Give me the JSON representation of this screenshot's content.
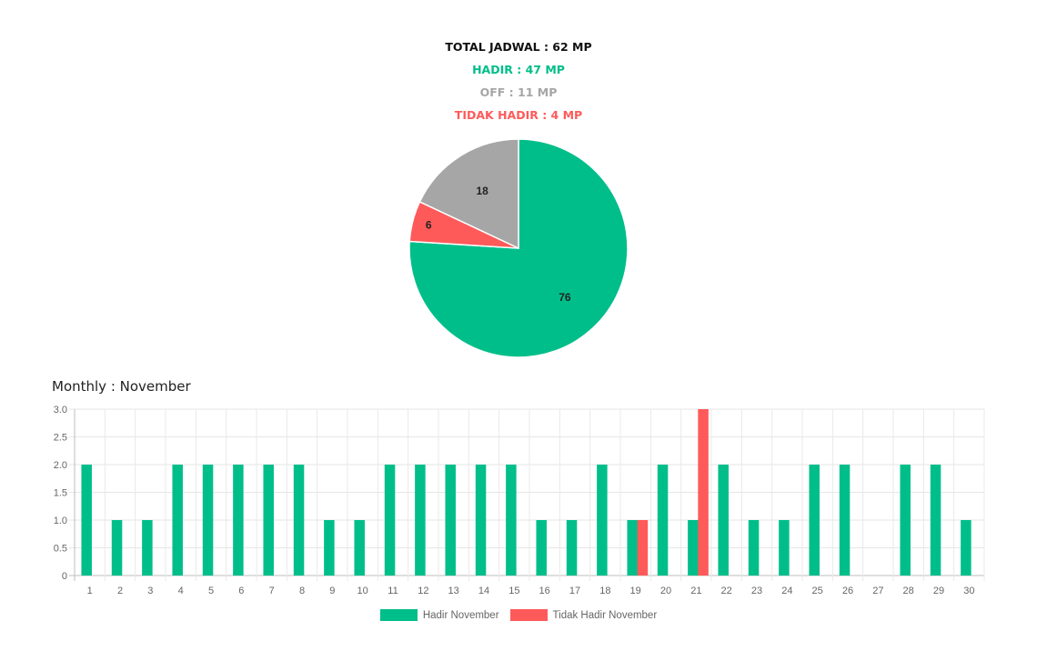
{
  "summary": {
    "total_jadwal": "TOTAL JADWAL : 62 MP",
    "hadir": "HADIR : 47 MP",
    "off": "OFF : 11 MP",
    "tidak_hadir": "TIDAK HADIR : 4 MP"
  },
  "colors": {
    "hadir": "#00be8a",
    "off": "#a6a6a6",
    "tidak_hadir": "#ff5a5a",
    "total": "#111111"
  },
  "monthly_title": "Monthly : November",
  "chart_data": [
    {
      "type": "pie",
      "slices": [
        {
          "label": "Hadir",
          "value": 76,
          "color": "#00be8a"
        },
        {
          "label": "Tidak Hadir",
          "value": 6,
          "color": "#ff5a5a"
        },
        {
          "label": "Off",
          "value": 18,
          "color": "#a6a6a6"
        }
      ]
    },
    {
      "type": "bar",
      "categories": [
        "1",
        "2",
        "3",
        "4",
        "5",
        "6",
        "7",
        "8",
        "9",
        "10",
        "11",
        "12",
        "13",
        "14",
        "15",
        "16",
        "17",
        "18",
        "19",
        "20",
        "21",
        "22",
        "23",
        "24",
        "25",
        "26",
        "27",
        "28",
        "29",
        "30"
      ],
      "series": [
        {
          "name": "Hadir November",
          "color": "#00be8a",
          "values": [
            2,
            1,
            1,
            2,
            2,
            2,
            2,
            2,
            1,
            1,
            2,
            2,
            2,
            2,
            2,
            1,
            1,
            2,
            1,
            2,
            1,
            2,
            1,
            1,
            2,
            2,
            0,
            2,
            2,
            1
          ]
        },
        {
          "name": "Tidak Hadir November",
          "color": "#ff5a5a",
          "values": [
            0,
            0,
            0,
            0,
            0,
            0,
            0,
            0,
            0,
            0,
            0,
            0,
            0,
            0,
            0,
            0,
            0,
            0,
            1,
            0,
            3,
            0,
            0,
            0,
            0,
            0,
            0,
            0,
            0,
            0
          ]
        }
      ],
      "ylim": [
        0,
        3.0
      ],
      "yticks": [
        "0",
        "0.5",
        "1.0",
        "1.5",
        "2.0",
        "2.5",
        "3.0"
      ],
      "grid": true,
      "legend": "bottom"
    }
  ]
}
